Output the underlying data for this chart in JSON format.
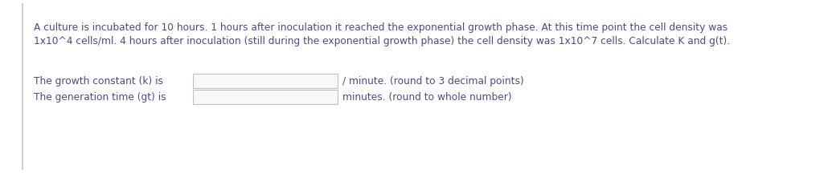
{
  "bg_color": "#ffffff",
  "left_border_color": "#d0d0d0",
  "text_color": "#4a4a8a",
  "box_facecolor": "#f8f8f8",
  "box_edgecolor": "#c0c0c0",
  "paragraph_line1": "A culture is incubated for 10 hours. 1 hours after inoculation it reached the exponential growth phase. At this time point the cell density was",
  "paragraph_line2": "1x10^4 cells/ml. 4 hours after inoculation (still during the exponential growth phase) the cell density was 1x10^7 cells. Calculate K and g(t).",
  "label1": "The growth constant (k) is",
  "label2": "The generation time (gt) is",
  "suffix1": "/ minute. (round to 3 decimal points)",
  "suffix2": "minutes. (round to whole number)",
  "font_size": 8.8,
  "fig_width": 10.3,
  "fig_height": 2.16,
  "dpi": 100
}
